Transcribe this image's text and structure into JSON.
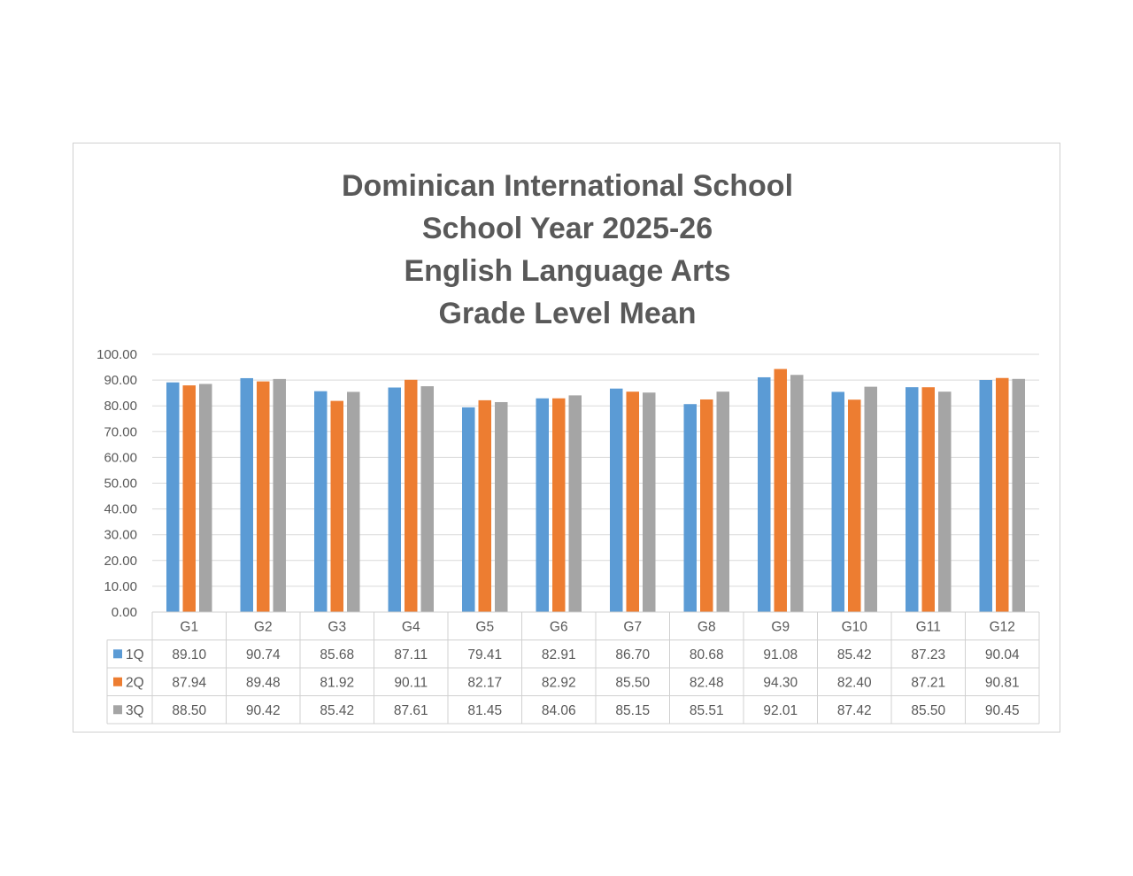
{
  "chart_data": {
    "type": "bar",
    "title_lines": [
      "Dominican International School",
      "School Year 2025-26",
      "English Language Arts",
      "Grade Level Mean"
    ],
    "categories": [
      "G1",
      "G2",
      "G3",
      "G4",
      "G5",
      "G6",
      "G7",
      "G8",
      "G9",
      "G10",
      "G11",
      "G12"
    ],
    "series": [
      {
        "name": "1Q",
        "color": "#5B9BD5",
        "values": [
          89.1,
          90.74,
          85.68,
          87.11,
          79.41,
          82.91,
          86.7,
          80.68,
          91.08,
          85.42,
          87.23,
          90.04
        ],
        "labels": [
          "89.10",
          "90.74",
          "85.68",
          "87.11",
          "79.41",
          "82.91",
          "86.70",
          "80.68",
          "91.08",
          "85.42",
          "87.23",
          "90.04"
        ]
      },
      {
        "name": "2Q",
        "color": "#ED7D31",
        "values": [
          87.94,
          89.48,
          81.92,
          90.11,
          82.17,
          82.92,
          85.5,
          82.48,
          94.3,
          82.4,
          87.21,
          90.81
        ],
        "labels": [
          "87.94",
          "89.48",
          "81.92",
          "90.11",
          "82.17",
          "82.92",
          "85.50",
          "82.48",
          "94.30",
          "82.40",
          "87.21",
          "90.81"
        ]
      },
      {
        "name": "3Q",
        "color": "#A5A5A5",
        "values": [
          88.5,
          90.42,
          85.42,
          87.61,
          81.45,
          84.06,
          85.15,
          85.51,
          92.01,
          87.42,
          85.5,
          90.45
        ],
        "labels": [
          "88.50",
          "90.42",
          "85.42",
          "87.61",
          "81.45",
          "84.06",
          "85.15",
          "85.51",
          "92.01",
          "87.42",
          "85.50",
          "90.45"
        ]
      }
    ],
    "ylim": [
      0,
      100
    ],
    "yticks": [
      "0.00",
      "10.00",
      "20.00",
      "30.00",
      "40.00",
      "50.00",
      "60.00",
      "70.00",
      "80.00",
      "90.00",
      "100.00"
    ],
    "grid": true,
    "legend": "data-table-left"
  }
}
